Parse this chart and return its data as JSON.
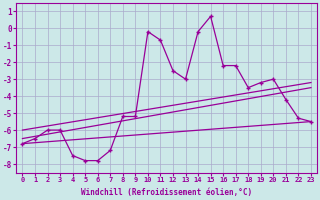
{
  "xlabel": "Windchill (Refroidissement éolien,°C)",
  "ylabel": "",
  "bg_color": "#cce8e8",
  "grid_color": "#aaaacc",
  "line_color": "#990099",
  "xlim": [
    -0.5,
    23.5
  ],
  "ylim": [
    -8.5,
    1.5
  ],
  "xticks": [
    0,
    1,
    2,
    3,
    4,
    5,
    6,
    7,
    8,
    9,
    10,
    11,
    12,
    13,
    14,
    15,
    16,
    17,
    18,
    19,
    20,
    21,
    22,
    23
  ],
  "yticks": [
    -8,
    -7,
    -6,
    -5,
    -4,
    -3,
    -2,
    -1,
    0,
    1
  ],
  "series1_x": [
    0,
    1,
    2,
    3,
    4,
    5,
    6,
    7,
    8,
    9,
    10,
    11,
    12,
    13,
    14,
    15,
    16,
    17,
    18,
    19,
    20,
    21,
    22,
    23
  ],
  "series1_y": [
    -6.8,
    -6.5,
    -6.0,
    -6.0,
    -7.5,
    -7.8,
    -7.8,
    -7.2,
    -5.2,
    -5.2,
    -0.2,
    -0.7,
    -2.5,
    -3.0,
    -0.2,
    0.7,
    -2.2,
    -2.2,
    -3.5,
    -3.2,
    -3.0,
    -4.2,
    -5.3,
    -5.5
  ],
  "series2_x": [
    0,
    23
  ],
  "series2_y": [
    -6.5,
    -3.5
  ],
  "series3_x": [
    0,
    23
  ],
  "series3_y": [
    -6.0,
    -3.2
  ],
  "series4_x": [
    0,
    23
  ],
  "series4_y": [
    -6.8,
    -5.5
  ]
}
